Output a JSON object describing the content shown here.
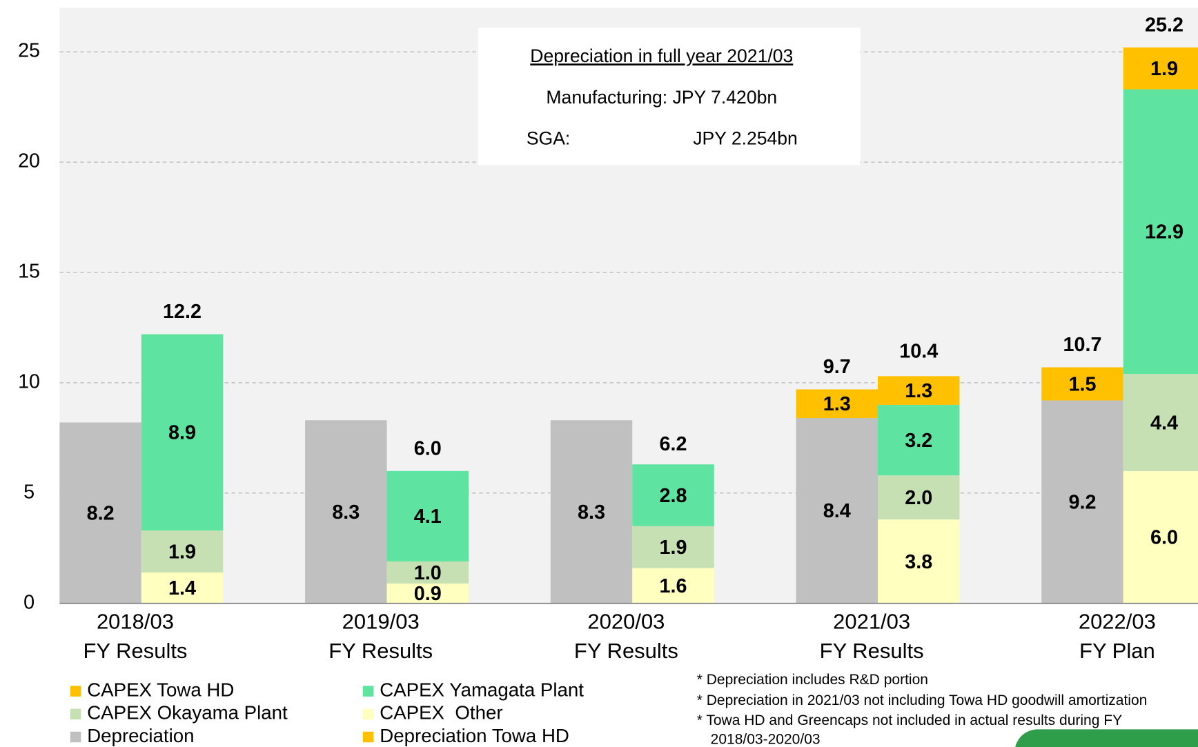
{
  "chart_data": {
    "type": "stacked_bar",
    "categories": [
      [
        "2018/03",
        "FY Results"
      ],
      [
        "2019/03",
        "FY Results"
      ],
      [
        "2020/03",
        "FY Results"
      ],
      [
        "2021/03",
        "FY Results"
      ],
      [
        "2022/03",
        "FY Plan"
      ]
    ],
    "ylim": [
      0,
      27
    ],
    "yticks": [
      0,
      5,
      10,
      15,
      20,
      25
    ],
    "grid": true,
    "series": [
      {
        "name": "Depreciation",
        "stack": "depreciation",
        "color": "#c0c0c0",
        "values": [
          8.2,
          8.3,
          8.3,
          8.4,
          9.2
        ]
      },
      {
        "name": "Depreciation Towa HD",
        "stack": "depreciation",
        "color": "#ffc000",
        "values": [
          null,
          null,
          null,
          1.3,
          1.5
        ]
      },
      {
        "name": "CAPEX  Other",
        "stack": "capex",
        "color": "#ffffc0",
        "values": [
          1.4,
          0.9,
          1.6,
          3.8,
          6.0
        ],
        "value_labels": [
          "1.4",
          "0.9",
          "1.6",
          "3.8",
          "6.0"
        ]
      },
      {
        "name": "CAPEX Okayama Plant",
        "stack": "capex",
        "color": "#c6e0b4",
        "values": [
          1.9,
          1.0,
          1.9,
          2.0,
          4.4
        ],
        "value_labels": [
          "1.9",
          "1.0",
          "1.9",
          "2.0",
          "4.4"
        ]
      },
      {
        "name": "CAPEX Yamagata Plant",
        "stack": "capex",
        "color": "#5fe3a1",
        "values": [
          8.9,
          4.1,
          2.8,
          3.2,
          12.9
        ]
      },
      {
        "name": "CAPEX Towa HD",
        "stack": "capex",
        "color": "#ffc000",
        "values": [
          null,
          null,
          null,
          1.3,
          1.9
        ]
      }
    ],
    "totals": {
      "depreciation": {
        "values": [
          null,
          null,
          null,
          9.7,
          10.7
        ]
      },
      "capex": {
        "values": [
          12.2,
          6.0,
          6.2,
          10.4,
          25.2
        ],
        "value_labels": [
          "12.2",
          "6.0",
          "6.2",
          "10.4",
          "25.2"
        ]
      }
    },
    "annotation_box": [
      "Depreciation in full year 2021/03",
      "Manufacturing: JPY 7.420bn",
      [
        "SGA:",
        "JPY 2.254bn"
      ]
    ],
    "footnotes": [
      "* Depreciation includes R&D portion",
      "* Depreciation in 2021/03 not including Towa HD goodwill amortization",
      "* Towa HD and Greencaps not included in actual results during FY",
      "2018/03-2020/03"
    ]
  }
}
